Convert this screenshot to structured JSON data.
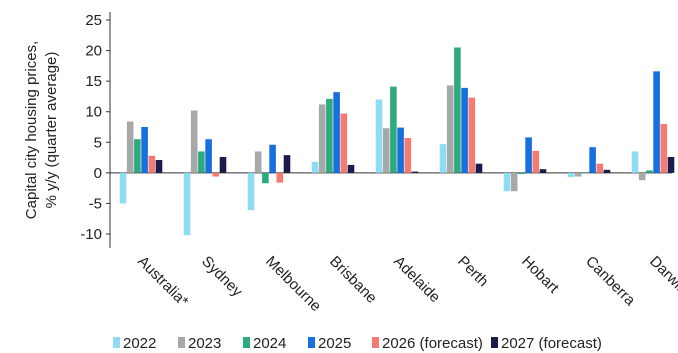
{
  "chart_data": {
    "type": "bar",
    "title": "",
    "xlabel": "",
    "ylabel_lines": [
      "Capital city housing prices,",
      "% y/y (quarter average)"
    ],
    "ylim": [
      -12,
      26
    ],
    "yticks": [
      -10,
      -5,
      0,
      5,
      10,
      15,
      20,
      25
    ],
    "categories": [
      "Australia*",
      "Sydney",
      "Melbourne",
      "Brisbane",
      "Adelaide",
      "Perth",
      "Hobart",
      "Canberra",
      "Darwin"
    ],
    "series": [
      {
        "name": "2022",
        "color": "#8fdcf2",
        "values": [
          -5.0,
          -10.2,
          -6.1,
          1.8,
          12.0,
          4.7,
          -3.0,
          -0.7,
          3.5
        ]
      },
      {
        "name": "2023",
        "color": "#a8a8a8",
        "values": [
          8.4,
          10.2,
          3.5,
          11.2,
          7.3,
          14.3,
          -3.0,
          -0.6,
          -1.2
        ]
      },
      {
        "name": "2024",
        "color": "#2eaa7e",
        "values": [
          5.5,
          3.5,
          -1.7,
          12.1,
          14.1,
          20.5,
          -0.2,
          0.0,
          0.4
        ]
      },
      {
        "name": "2025",
        "color": "#1a6fe0",
        "values": [
          7.5,
          5.5,
          4.6,
          13.2,
          7.4,
          13.9,
          5.8,
          4.2,
          16.6
        ]
      },
      {
        "name": "2026 (forecast)",
        "color": "#f47a72",
        "values": [
          2.8,
          -0.6,
          -1.6,
          9.7,
          5.7,
          12.3,
          3.6,
          1.5,
          8.0
        ]
      },
      {
        "name": "2027 (forecast)",
        "color": "#1c1c4a",
        "values": [
          2.1,
          2.6,
          2.9,
          1.3,
          0.2,
          1.5,
          0.6,
          0.5,
          2.6
        ]
      }
    ],
    "legend_position": "bottom",
    "grid": false
  }
}
